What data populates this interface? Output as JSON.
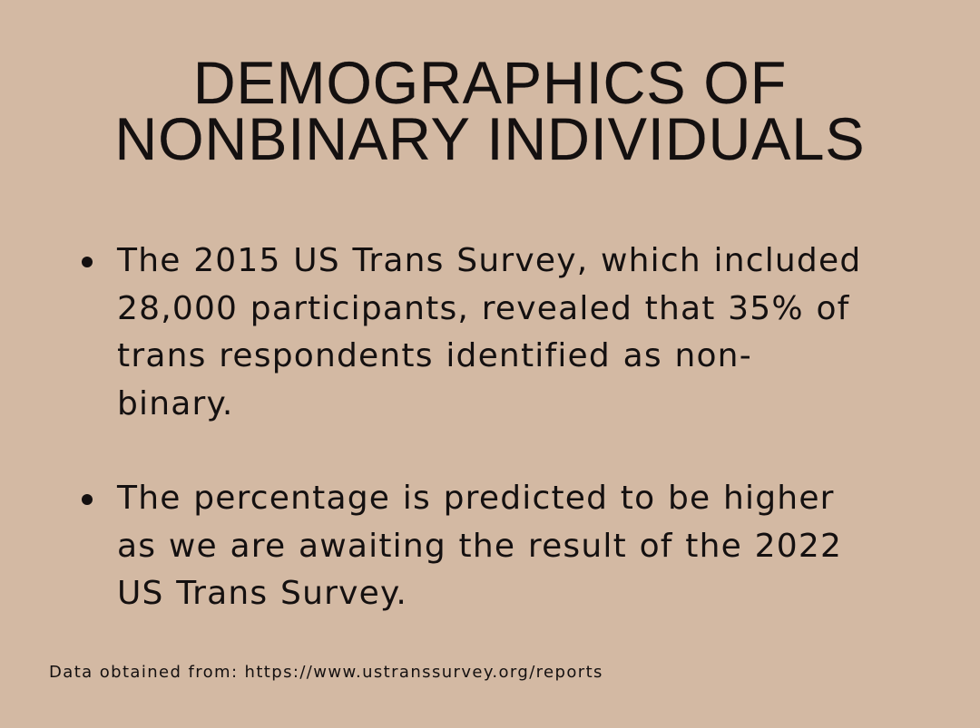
{
  "title": {
    "lines": [
      "DEMOGRAPHICS OF",
      "NONBINARY INDIVIDUALS"
    ]
  },
  "bullets": [
    {
      "lines": [
        "The 2015 US Trans Survey, which included",
        "28,000 participants, revealed that 35% of",
        "trans respondents identified as non-",
        "binary."
      ]
    },
    {
      "lines": [
        "The percentage is predicted to be higher",
        "as we are awaiting the result of the 2022",
        "US Trans Survey."
      ]
    }
  ],
  "footer": {
    "source": "Data obtained from: https://www.ustranssurvey.org/reports"
  },
  "colors": {
    "background": "#d3b9a3",
    "text": "#141010"
  }
}
